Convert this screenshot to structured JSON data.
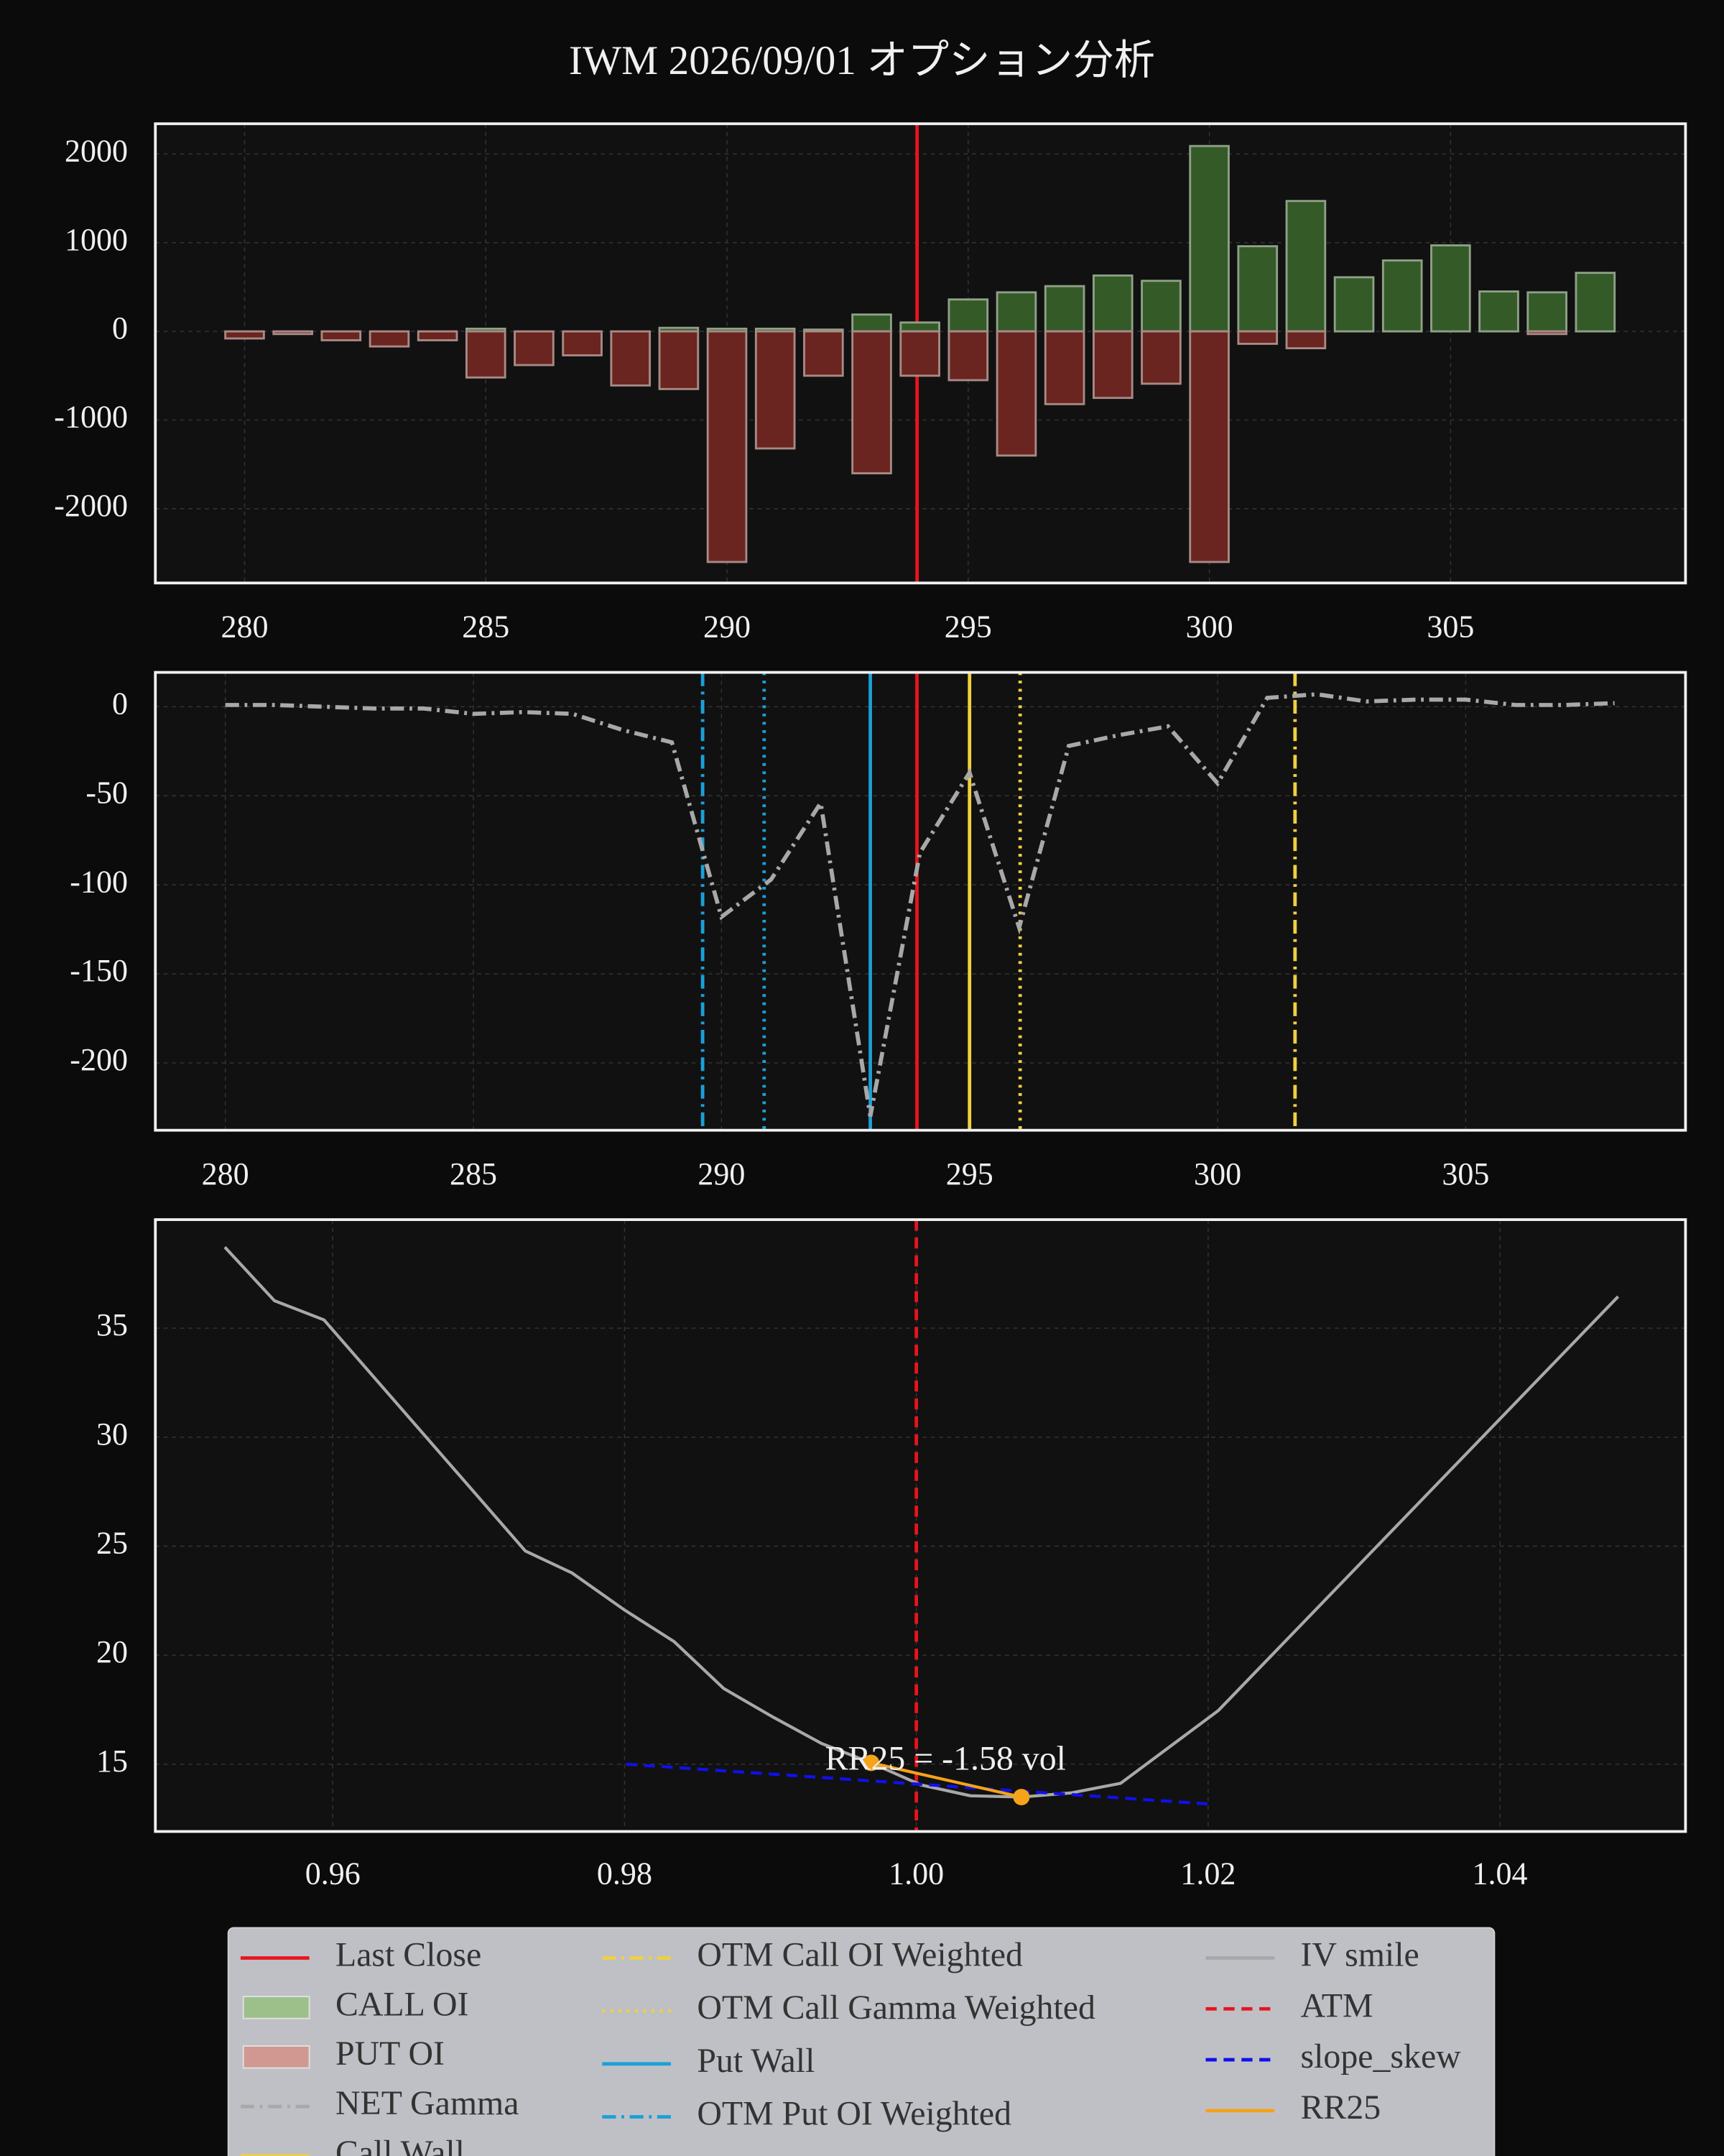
{
  "title": "IWM 2026/09/01 オプション分析",
  "chart_data": [
    {
      "type": "bar",
      "x": [
        280,
        281,
        282,
        283,
        284,
        285,
        286,
        287,
        288,
        289,
        290,
        291,
        292,
        293,
        294,
        295,
        296,
        297,
        298,
        299,
        300,
        301,
        302,
        303,
        304,
        305,
        306,
        307,
        308
      ],
      "series": [
        {
          "color": "#345a28",
          "edge": "#8fa088",
          "values": [
            0,
            0,
            0,
            0,
            0,
            30,
            0,
            0,
            0,
            40,
            30,
            30,
            20,
            190,
            100,
            360,
            440,
            510,
            630,
            570,
            2090,
            960,
            1470,
            610,
            800,
            970,
            450,
            440,
            660
          ]
        },
        {
          "color": "#6a2520",
          "edge": "#a88a86",
          "values": [
            -80,
            -30,
            -100,
            -170,
            -100,
            -520,
            -380,
            -270,
            -610,
            -650,
            -2600,
            -1320,
            -500,
            -1600,
            -500,
            -550,
            -1400,
            -820,
            -750,
            -590,
            -2600,
            -140,
            -190,
            0,
            0,
            0,
            0,
            -30,
            0
          ]
        }
      ],
      "vlines": [
        {
          "x": 293.94,
          "color": "#e8141e",
          "style": "solid"
        }
      ],
      "xlim": [
        278.15,
        309.87
      ],
      "ylim": [
        -2837,
        2341
      ],
      "xticks": [
        280,
        285,
        290,
        295,
        300,
        305
      ],
      "yticks": [
        2000,
        1000,
        0,
        -1000,
        -2000
      ],
      "grid": true
    },
    {
      "type": "line",
      "x": [
        280,
        281,
        282,
        283,
        284,
        285,
        286,
        287,
        288,
        289,
        290,
        291,
        292,
        293,
        294,
        295,
        296,
        297,
        298,
        299,
        300,
        301,
        302,
        303,
        304,
        305,
        306,
        307,
        308
      ],
      "series": [
        {
          "color": "#a8a8a8",
          "style": "dashdot",
          "values": [
            1,
            1,
            0,
            -1,
            -1,
            -4,
            -3,
            -4,
            -13,
            -20,
            -118,
            -97,
            -54,
            -230,
            -82,
            -37,
            -124,
            -22,
            -16,
            -11,
            -43,
            5,
            7,
            3,
            4,
            4,
            1,
            1,
            2
          ]
        }
      ],
      "vlines": [
        {
          "x": 289.62,
          "color": "#1aa0d8",
          "style": "dashdot"
        },
        {
          "x": 290.86,
          "color": "#1aa0d8",
          "style": "dotted"
        },
        {
          "x": 293.0,
          "color": "#1aa0d8",
          "style": "solid"
        },
        {
          "x": 293.94,
          "color": "#e8141e",
          "style": "solid"
        },
        {
          "x": 295.0,
          "color": "#f0d040",
          "style": "solid"
        },
        {
          "x": 296.02,
          "color": "#f0d040",
          "style": "dotted"
        },
        {
          "x": 301.56,
          "color": "#f0d040",
          "style": "dashdot"
        }
      ],
      "xlim": [
        278.59,
        309.43
      ],
      "ylim": [
        -237.8,
        19.3
      ],
      "xticks": [
        280,
        285,
        290,
        295,
        300,
        305
      ],
      "yticks": [
        0,
        -50,
        -100,
        -150,
        -200
      ],
      "grid": true
    },
    {
      "type": "line",
      "series": [
        {
          "color": "#a8a8a8",
          "style": "solid",
          "x": [
            0.9526,
            0.956,
            0.9594,
            0.9732,
            0.9764,
            0.98,
            0.9834,
            0.9868,
            0.9902,
            0.9935,
            0.9969,
            1.0003,
            1.0037,
            1.0072,
            1.0106,
            1.014,
            1.0207,
            1.0481
          ],
          "values": [
            38.72,
            36.26,
            35.38,
            24.78,
            23.77,
            22.07,
            20.62,
            18.47,
            17.15,
            15.95,
            15.06,
            14.05,
            13.55,
            13.49,
            13.68,
            14.12,
            17.46,
            36.45
          ]
        },
        {
          "color": "#1010ee",
          "style": "dashed",
          "x": [
            0.9801,
            1.0201
          ],
          "values": [
            15.0,
            13.17
          ]
        },
        {
          "color": "#f5a31a",
          "style": "solid",
          "markers": true,
          "x": [
            0.9969,
            1.0072
          ],
          "values": [
            15.06,
            13.49
          ]
        }
      ],
      "vlines": [
        {
          "x": 1.0,
          "color": "#e8141e",
          "style": "dashed"
        }
      ],
      "annotation": {
        "text": "RR25 = -1.58 vol",
        "x": 1.002,
        "y": 15.1
      },
      "xlim": [
        0.94784,
        1.05272
      ],
      "ylim": [
        11.91,
        39.98
      ],
      "xticks": [
        0.96,
        0.98,
        {
          "value": 1.0,
          "label": "1.00"
        },
        1.02,
        1.04
      ],
      "yticks": [
        15,
        20,
        25,
        30,
        35
      ],
      "grid": true
    }
  ],
  "legend": [
    {
      "label": "Last Close",
      "color": "#e8141e",
      "style": "solid"
    },
    {
      "label": "CALL OI",
      "color": "#9dc08b",
      "style": "patch"
    },
    {
      "label": "PUT OI",
      "color": "#d09890",
      "style": "patch"
    },
    {
      "label": "NET Gamma",
      "color": "#a8a8a8",
      "style": "dashdot"
    },
    {
      "label": "Call Wall",
      "color": "#f0d040",
      "style": "solid"
    },
    {
      "label": "OTM Call OI Weighted",
      "color": "#f0d040",
      "style": "dashdot"
    },
    {
      "label": "OTM Call Gamma Weighted",
      "color": "#f0d040",
      "style": "dotted"
    },
    {
      "label": "Put Wall",
      "color": "#1aa0d8",
      "style": "solid"
    },
    {
      "label": "OTM Put OI Weighted",
      "color": "#1aa0d8",
      "style": "dashdot"
    },
    {
      "label": "IV smile",
      "color": "#a8a8a8",
      "style": "solid"
    },
    {
      "label": "ATM",
      "color": "#e8141e",
      "style": "dashed"
    },
    {
      "label": "slope_skew",
      "color": "#1010ee",
      "style": "dashed"
    },
    {
      "label": "RR25",
      "color": "#f5a31a",
      "style": "solid"
    }
  ]
}
